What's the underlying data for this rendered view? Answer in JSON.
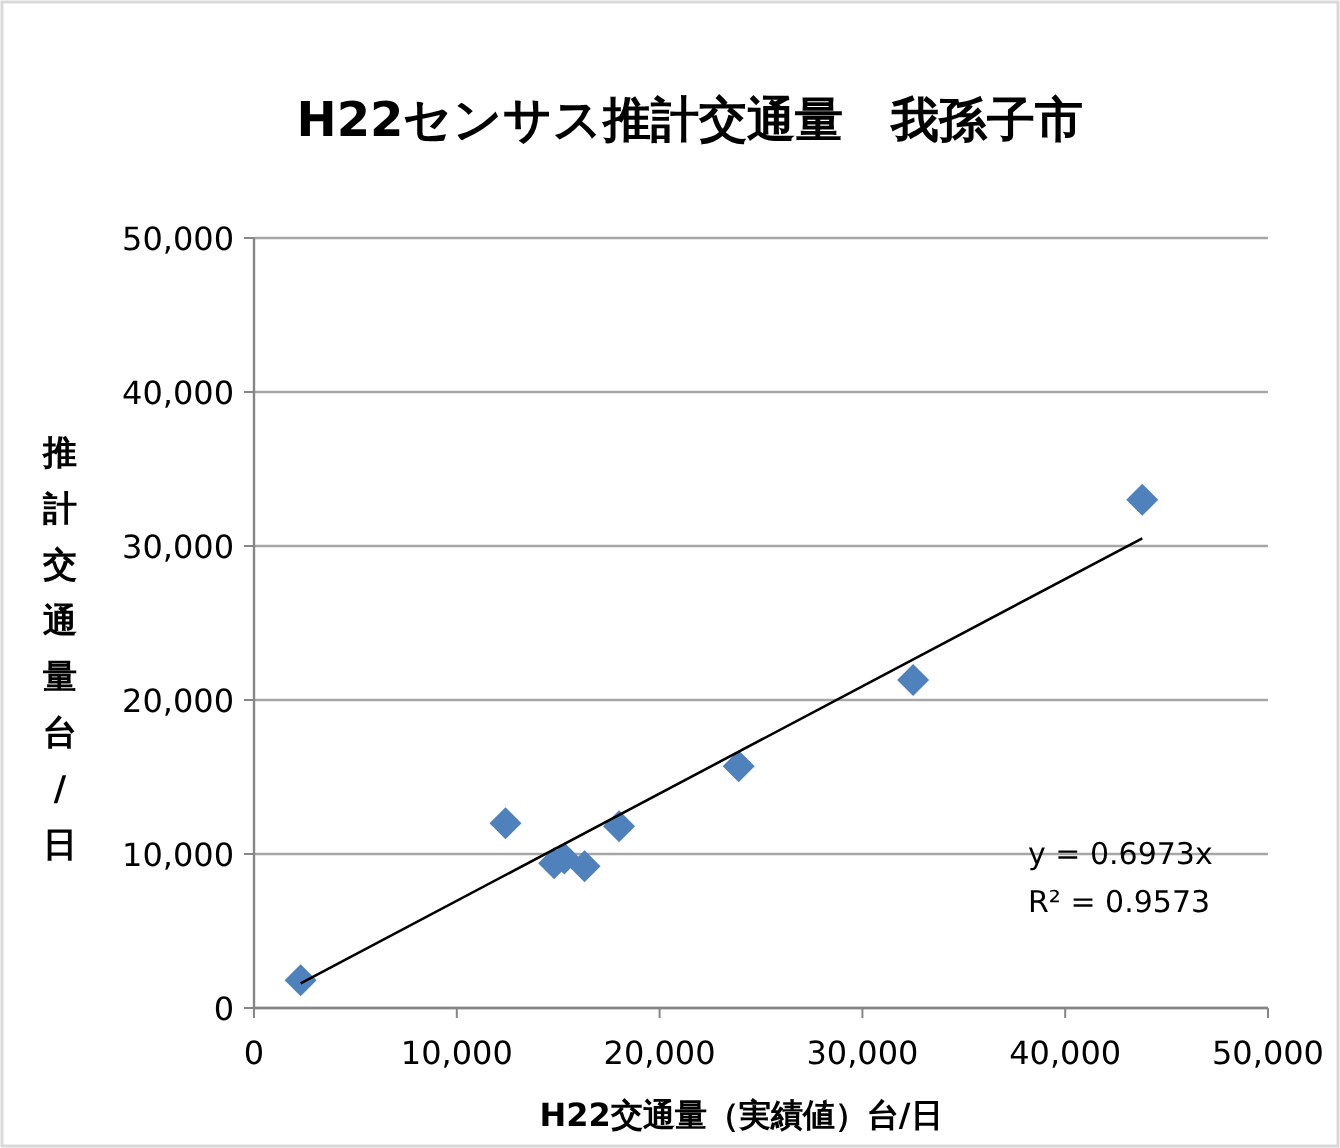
{
  "chart_data": {
    "type": "scatter",
    "title": "H22センサス推計交通量　我孫子市",
    "xlabel": "H22交通量（実績値）台/日",
    "ylabel": "推計交通量台/日",
    "xlim": [
      0,
      50000
    ],
    "xticks": [
      {
        "value": 0,
        "label": "0"
      },
      {
        "value": 10000,
        "label": "10,000"
      },
      {
        "value": 20000,
        "label": "20,000"
      },
      {
        "value": 30000,
        "label": "30,000"
      },
      {
        "value": 40000,
        "label": "40,000"
      },
      {
        "value": 50000,
        "label": "50,000"
      }
    ],
    "ylim": [
      0,
      50000
    ],
    "yticks": [
      {
        "value": 0,
        "label": "0"
      },
      {
        "value": 10000,
        "label": "10,000"
      },
      {
        "value": 20000,
        "label": "20,000"
      },
      {
        "value": 30000,
        "label": "30,000"
      },
      {
        "value": 40000,
        "label": "40,000"
      },
      {
        "value": 50000,
        "label": "50,000"
      }
    ],
    "grid": "y",
    "series": [
      {
        "color": "#4f81bd",
        "marker": "diamond",
        "x": [
          2300,
          12400,
          14800,
          15300,
          16300,
          18000,
          23900,
          32500,
          43800
        ],
        "values": [
          1800,
          12000,
          9400,
          9700,
          9200,
          11800,
          15700,
          21300,
          33000
        ]
      },
      {
        "type": "line",
        "color": "#000000",
        "marker": "none",
        "line_style": "solid",
        "x": [
          2300,
          43800
        ],
        "values": [
          1600,
          30500
        ]
      }
    ],
    "annotations": [
      "y = 0.6973x",
      "R² = 0.9573"
    ]
  }
}
